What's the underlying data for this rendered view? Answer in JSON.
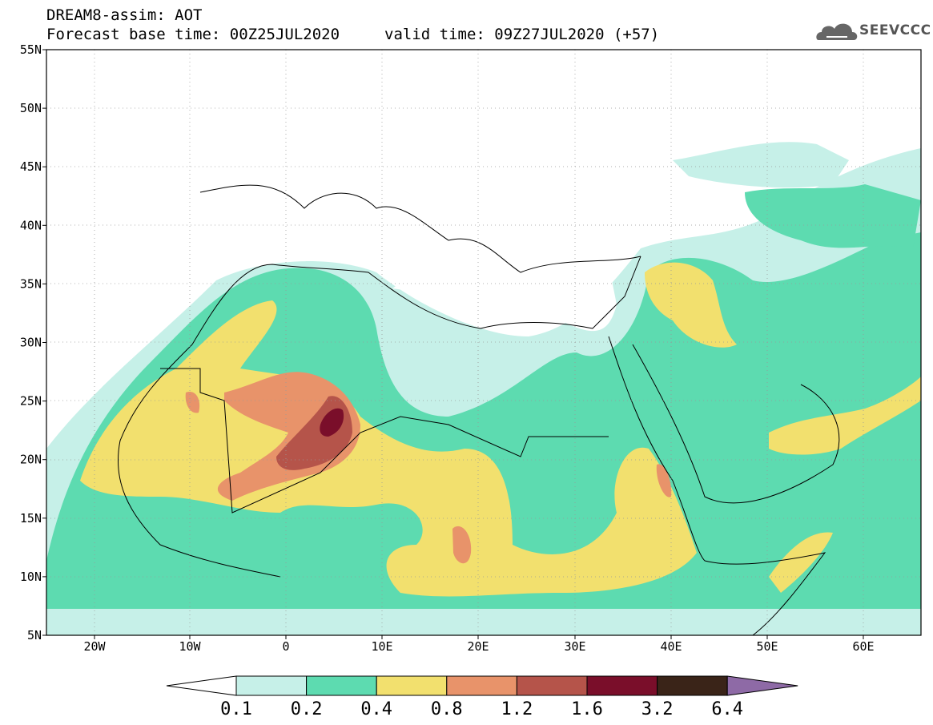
{
  "header": {
    "title": "DREAM8-assim: AOT",
    "base_time": "Forecast base time: 00Z25JUL2020",
    "valid_time": "valid time: 09Z27JUL2020 (+57)"
  },
  "logo": {
    "text": "SEEVCCC",
    "icon": "cloud-icon"
  },
  "map": {
    "lon_range": [
      -25,
      65
    ],
    "lat_range": [
      5,
      55
    ],
    "lon_ticks": [
      "20W",
      "10W",
      "0",
      "10E",
      "20E",
      "30E",
      "40E",
      "50E",
      "60E"
    ],
    "lat_ticks": [
      "55N",
      "50N",
      "45N",
      "40N",
      "35N",
      "30N",
      "25N",
      "20N",
      "15N",
      "10N",
      "5N"
    ],
    "grid": "dotted"
  },
  "colorbar": {
    "labels": [
      "0.1",
      "0.2",
      "0.4",
      "0.8",
      "1.2",
      "1.6",
      "3.2",
      "6.4"
    ],
    "colors": [
      "#ffffff",
      "#c6f0e8",
      "#5ddbb0",
      "#f2e06e",
      "#e8936a",
      "#b5544a",
      "#7a0e2a",
      "#3a2418",
      "#8e6aa6"
    ]
  }
}
